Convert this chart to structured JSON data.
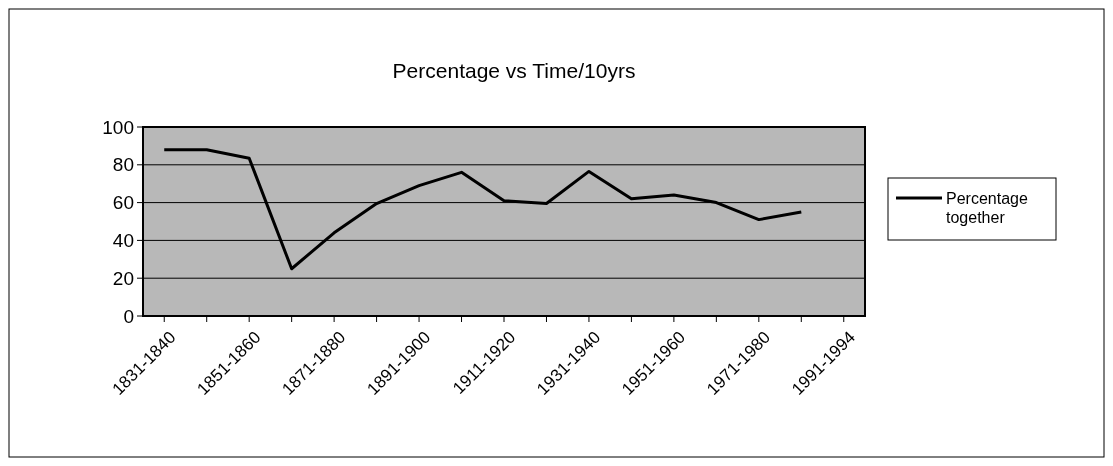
{
  "chart_data": {
    "type": "line",
    "title": "Percentage vs Time/10yrs",
    "categories": [
      "1831-1840",
      null,
      "1851-1860",
      null,
      "1871-1880",
      null,
      "1891-1900",
      null,
      "1911-1920",
      null,
      "1931-1940",
      null,
      "1951-1960",
      null,
      "1971-1980",
      null,
      "1991-1994"
    ],
    "series": [
      {
        "name": "Percentage together",
        "color": "#000000",
        "values": [
          88,
          88,
          83.5,
          25,
          44,
          59.5,
          69,
          76,
          61,
          59.5,
          76.5,
          62,
          64,
          60,
          51,
          55,
          null
        ]
      }
    ],
    "ylim": [
      0,
      100
    ],
    "yticks": [
      0,
      20,
      40,
      60,
      80,
      100
    ],
    "grid": "y",
    "legend": "right",
    "marker": "none",
    "line_style": "solid"
  }
}
